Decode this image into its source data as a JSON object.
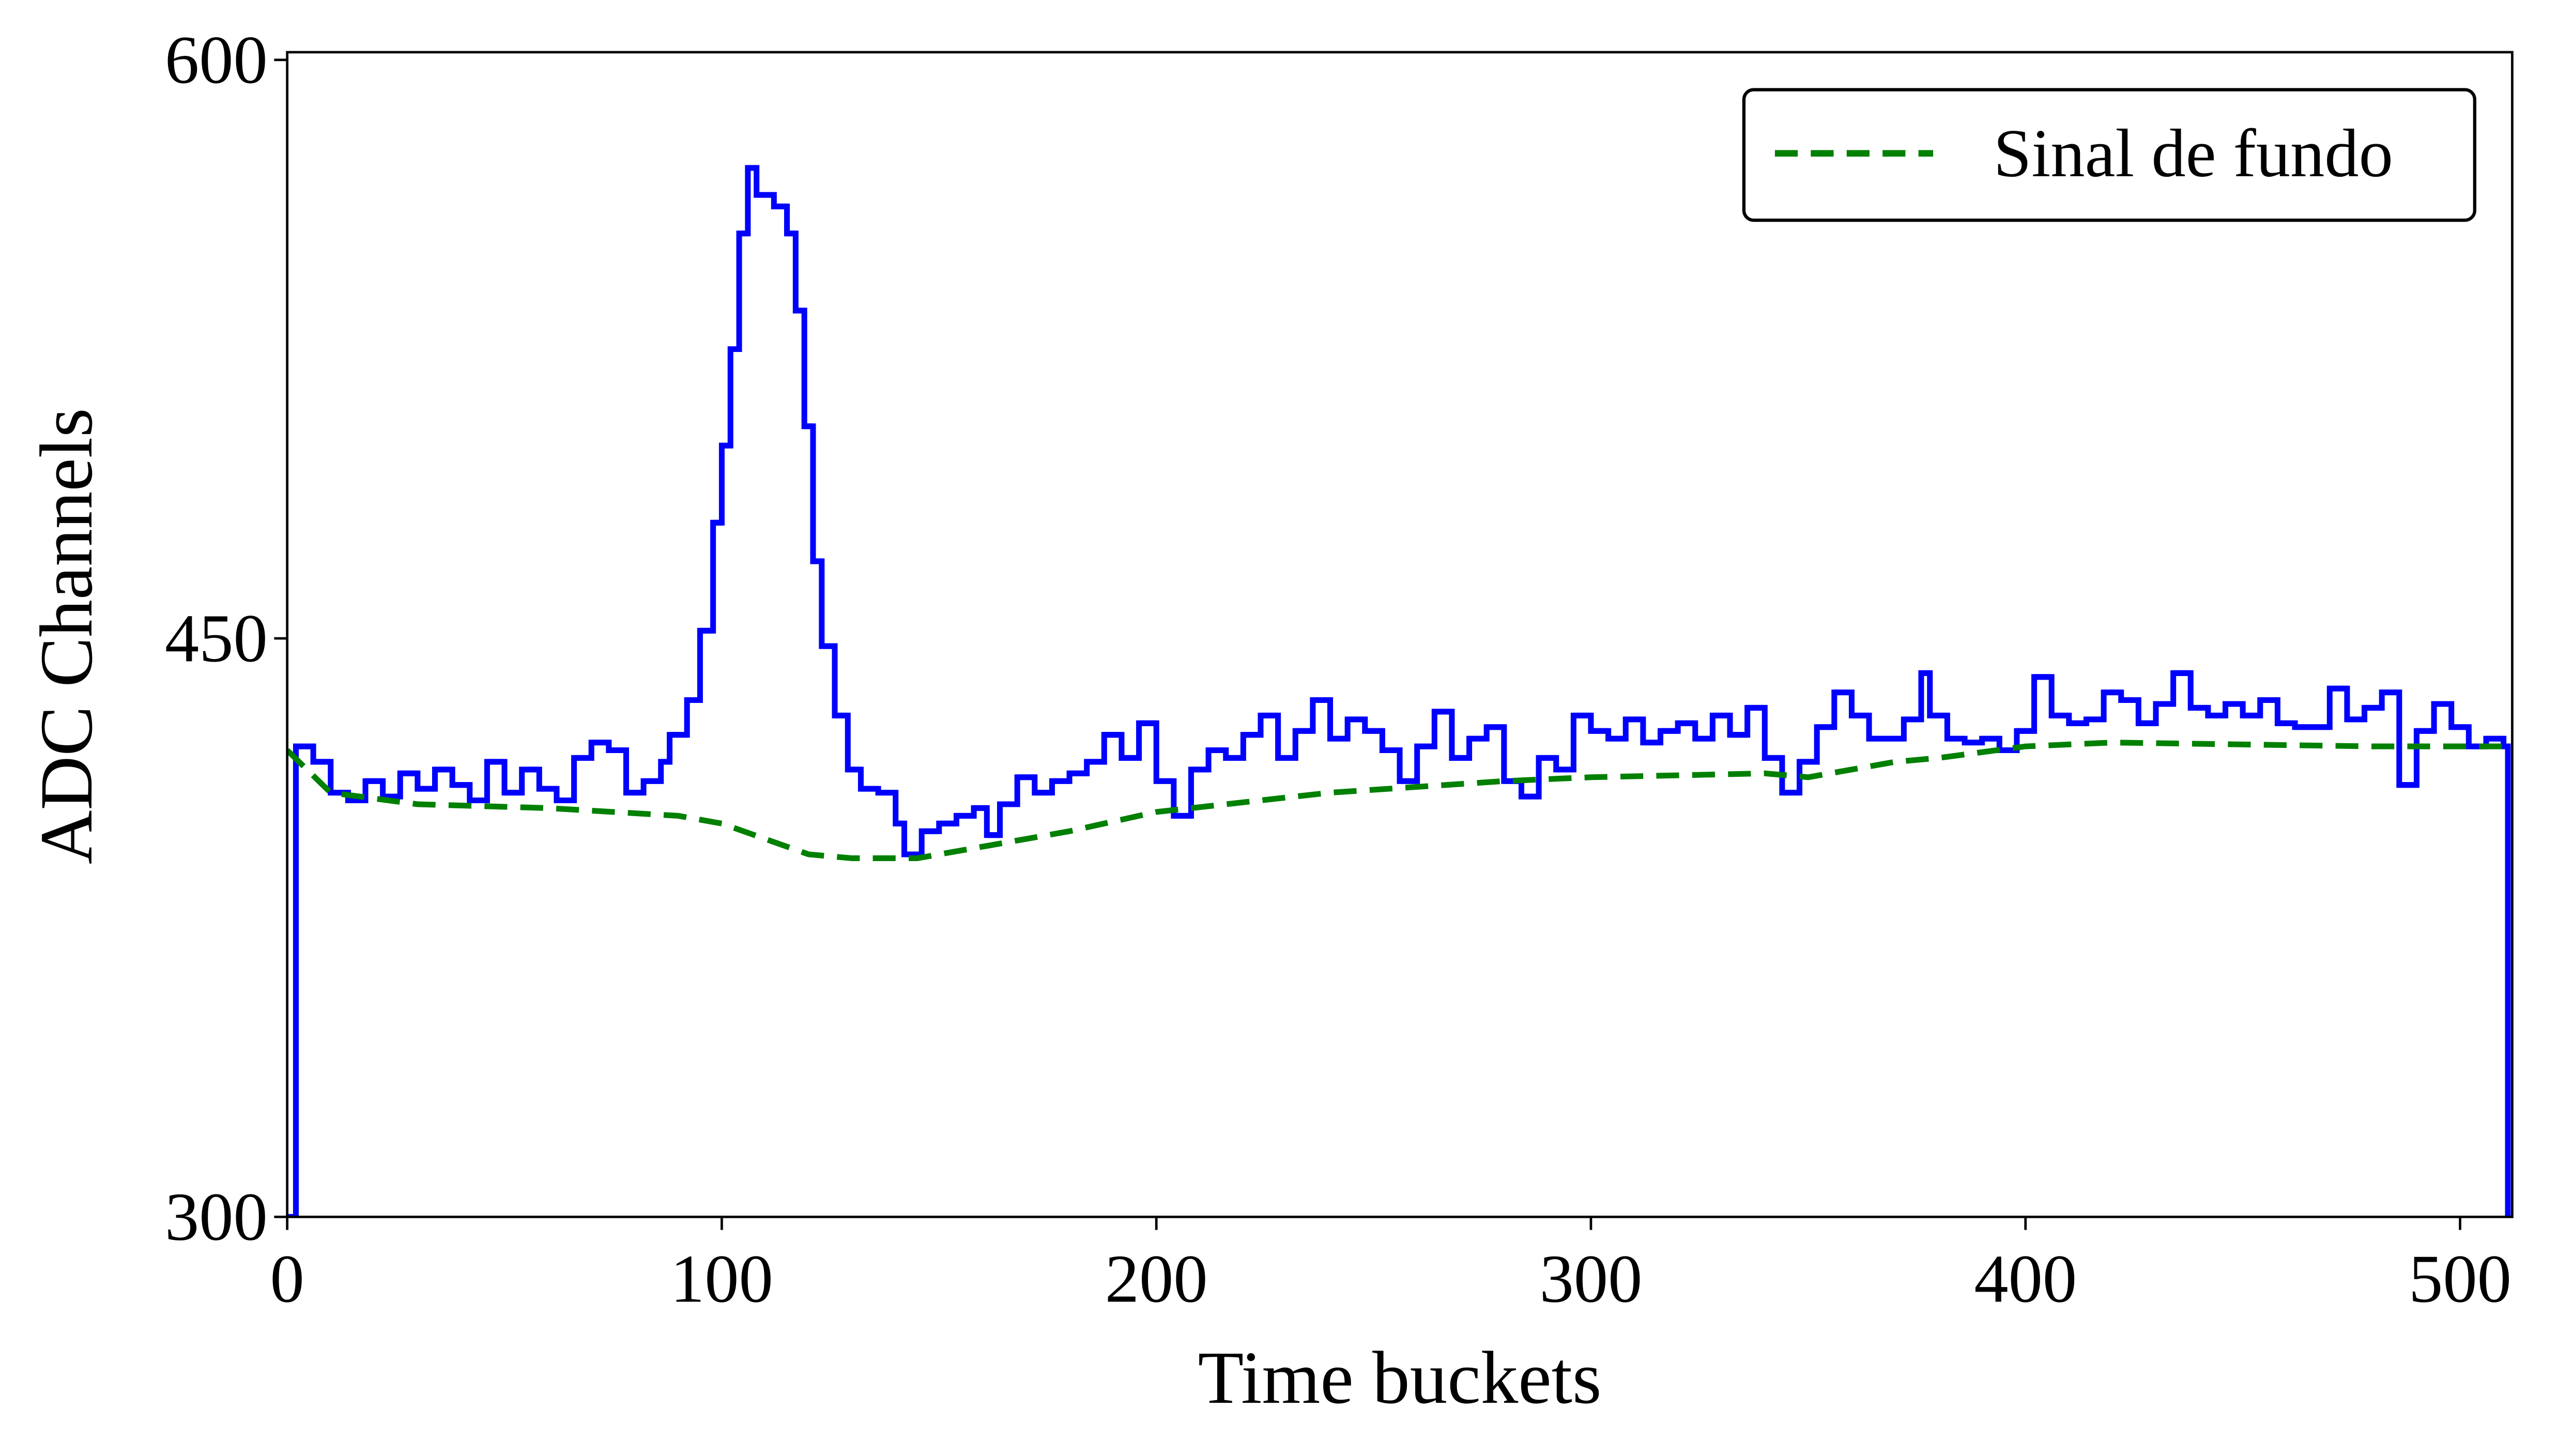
{
  "chart_data": {
    "type": "line",
    "step": "post",
    "xlabel": "Time buckets",
    "ylabel": "ADC Channels",
    "xlim": [
      0,
      512
    ],
    "ylim": [
      300,
      602
    ],
    "xticks": [
      0,
      100,
      200,
      300,
      400,
      500
    ],
    "yticks": [
      300,
      450,
      600
    ],
    "grid": false,
    "legend": "upper right",
    "series": [
      {
        "color": "#0000ff",
        "style": "solid",
        "x": [
          0,
          2,
          6,
          10,
          14,
          18,
          22,
          26,
          30,
          34,
          38,
          42,
          46,
          50,
          54,
          58,
          62,
          66,
          70,
          74,
          78,
          82,
          86,
          88,
          92,
          95,
          98,
          100,
          102,
          104,
          106,
          108,
          112,
          115,
          117,
          119,
          121,
          123,
          126,
          129,
          132,
          136,
          140,
          142,
          146,
          150,
          154,
          158,
          161,
          164,
          168,
          172,
          176,
          180,
          184,
          188,
          192,
          196,
          200,
          204,
          208,
          212,
          216,
          220,
          224,
          228,
          232,
          236,
          240,
          244,
          248,
          252,
          256,
          260,
          264,
          268,
          272,
          276,
          280,
          284,
          288,
          292,
          296,
          300,
          304,
          308,
          312,
          316,
          320,
          324,
          328,
          332,
          336,
          340,
          344,
          348,
          352,
          356,
          360,
          364,
          368,
          372,
          376,
          378,
          382,
          386,
          390,
          394,
          398,
          402,
          406,
          410,
          414,
          418,
          422,
          426,
          430,
          434,
          438,
          442,
          446,
          450,
          454,
          458,
          462,
          466,
          470,
          474,
          478,
          482,
          486,
          490,
          494,
          498,
          502,
          506,
          510,
          511
        ],
        "values": [
          300,
          422,
          418,
          410,
          408,
          413,
          409,
          415,
          411,
          416,
          412,
          408,
          418,
          410,
          416,
          411,
          408,
          419,
          423,
          421,
          410,
          413,
          418,
          425,
          434,
          452,
          480,
          500,
          525,
          555,
          572,
          565,
          562,
          555,
          535,
          505,
          470,
          448,
          430,
          416,
          411,
          410,
          402,
          394,
          400,
          402,
          404,
          406,
          399,
          407,
          414,
          410,
          413,
          415,
          418,
          425,
          419,
          428,
          413,
          404,
          416,
          421,
          419,
          425,
          430,
          419,
          426,
          434,
          424,
          429,
          426,
          421,
          413,
          422,
          431,
          419,
          424,
          427,
          413,
          409,
          419,
          416,
          430,
          426,
          424,
          429,
          423,
          426,
          428,
          424,
          430,
          425,
          432,
          419,
          410,
          418,
          427,
          436,
          430,
          424,
          424,
          429,
          441,
          430,
          424,
          423,
          424,
          421,
          426,
          440,
          430,
          428,
          429,
          436,
          434,
          428,
          433,
          441,
          432,
          430,
          433,
          430,
          434,
          428,
          427,
          427,
          437,
          429,
          432,
          436,
          412,
          426,
          433,
          427,
          422,
          424,
          422,
          300
        ]
      },
      {
        "name": "Sinal de fundo",
        "color": "#008000",
        "style": "dashed",
        "x": [
          0,
          10,
          30,
          60,
          90,
          100,
          110,
          120,
          130,
          145,
          160,
          180,
          200,
          240,
          280,
          300,
          340,
          350,
          370,
          380,
          400,
          420,
          480,
          512
        ],
        "values": [
          421,
          410,
          407,
          406,
          404,
          402,
          398,
          394,
          393,
          393,
          396,
          400,
          405,
          410,
          413,
          414,
          415,
          414,
          418,
          419,
          422,
          423,
          422,
          422
        ]
      }
    ]
  }
}
